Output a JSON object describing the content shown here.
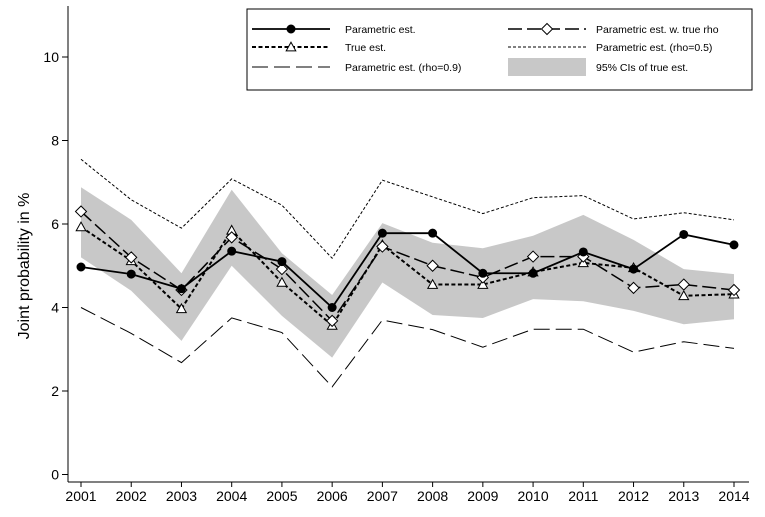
{
  "chart_data": {
    "type": "line",
    "title": "",
    "xlabel": "",
    "ylabel": "Joint probability in %",
    "x": [
      2001,
      2002,
      2003,
      2004,
      2005,
      2006,
      2007,
      2008,
      2009,
      2010,
      2011,
      2012,
      2013,
      2014
    ],
    "x_tick_labels": [
      "2001",
      "2002",
      "2003",
      "2004",
      "2005",
      "2006",
      "2007",
      "2008",
      "2009",
      "2010",
      "2011",
      "2012",
      "2013",
      "2014"
    ],
    "ylim": [
      0,
      11
    ],
    "y_ticks": [
      0,
      2,
      4,
      6,
      8,
      10
    ],
    "y_tick_labels": [
      "0",
      "2",
      "4",
      "6",
      "8",
      "10"
    ],
    "grid": false,
    "legend_position": "top-right",
    "series": [
      {
        "name": "Parametric est.",
        "style": "solid-filled-circle",
        "color": "#000000",
        "values": [
          4.97,
          4.8,
          4.45,
          5.35,
          5.1,
          4.0,
          5.78,
          5.78,
          4.82,
          4.82,
          5.33,
          4.92,
          5.75,
          5.5
        ]
      },
      {
        "name": "Parametric est. w. true rho",
        "style": "longdash-open-diamond",
        "color": "#000000",
        "values": [
          6.3,
          5.2,
          4.42,
          5.68,
          4.92,
          3.68,
          5.46,
          5.0,
          4.72,
          5.22,
          5.22,
          4.47,
          4.55,
          4.42
        ]
      },
      {
        "name": "True est.",
        "style": "shortdash-open-triangle",
        "color": "#000000",
        "values": [
          5.93,
          5.12,
          3.97,
          5.85,
          4.6,
          3.57,
          5.5,
          4.55,
          4.55,
          4.85,
          5.07,
          4.95,
          4.28,
          4.32
        ]
      },
      {
        "name": "Parametric est. (rho=0.5)",
        "style": "fine-dash",
        "color": "#000000",
        "values": [
          7.55,
          6.58,
          5.9,
          7.08,
          6.45,
          5.18,
          7.05,
          6.65,
          6.25,
          6.63,
          6.68,
          6.12,
          6.27,
          6.1
        ]
      },
      {
        "name": "Parametric est. (rho=0.9)",
        "style": "long-dash",
        "color": "#000000",
        "values": [
          4.0,
          3.38,
          2.68,
          3.75,
          3.4,
          2.1,
          3.7,
          3.47,
          3.05,
          3.48,
          3.48,
          2.93,
          3.18,
          3.02
        ]
      }
    ],
    "ci_band": {
      "name": "95% CIs of true est.",
      "color": "#c8c8c8",
      "lower": [
        5.2,
        4.4,
        3.2,
        5.0,
        3.8,
        2.8,
        4.6,
        3.82,
        3.75,
        4.2,
        4.15,
        3.92,
        3.6,
        3.72
      ],
      "upper": [
        6.88,
        6.1,
        4.82,
        6.82,
        5.3,
        4.3,
        6.02,
        5.55,
        5.42,
        5.72,
        6.22,
        5.62,
        4.92,
        4.8
      ]
    }
  },
  "legend": {
    "items": [
      {
        "label": "Parametric est.",
        "style": "solid-filled-circle"
      },
      {
        "label": "Parametric est. w. true rho",
        "style": "longdash-open-diamond"
      },
      {
        "label": "True est.",
        "style": "shortdash-open-triangle"
      },
      {
        "label": "Parametric est. (rho=0.5)",
        "style": "fine-dash"
      },
      {
        "label": "Parametric est. (rho=0.9)",
        "style": "long-dash"
      },
      {
        "label": "95% CIs of true est.",
        "style": "band"
      }
    ]
  }
}
